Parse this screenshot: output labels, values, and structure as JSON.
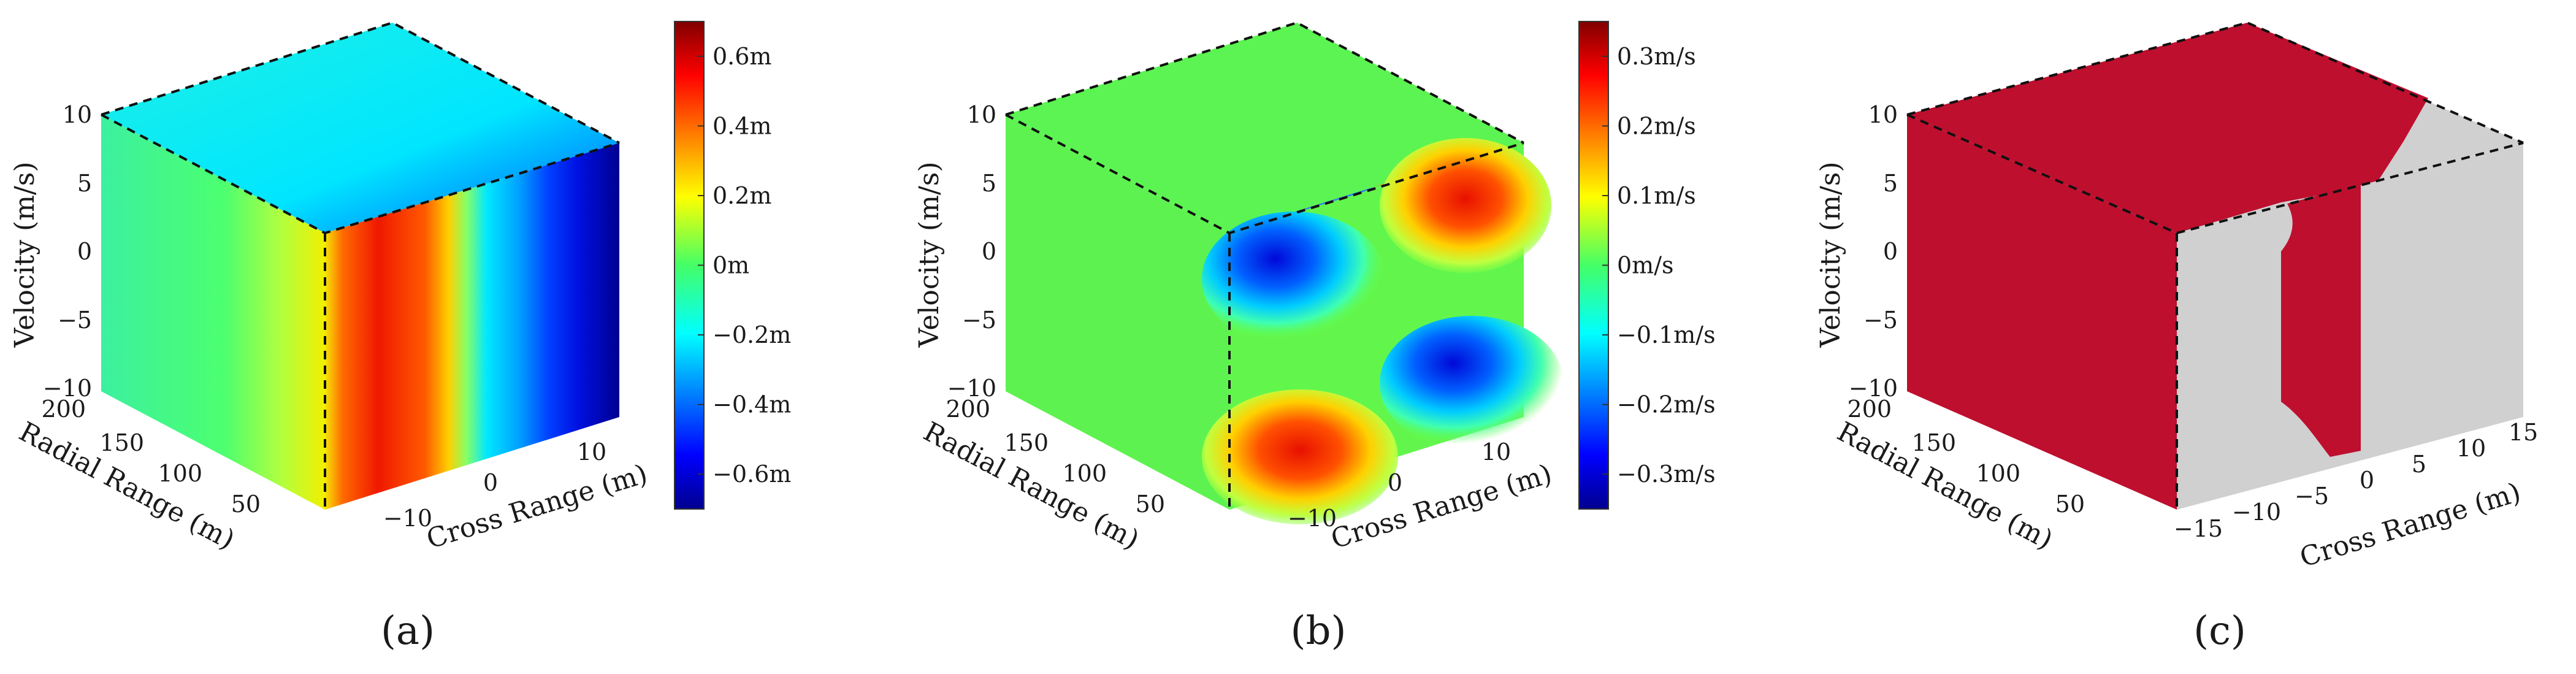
{
  "panels": [
    {
      "id": "a",
      "label": "(a)",
      "zlabel": "Velocity (m/s)",
      "ylabel": "Radial Range (m)",
      "xlabel": "Cross Range (m)",
      "zticks": [
        "10",
        "5",
        "0",
        "−5",
        "−10"
      ],
      "yticks": [
        "200",
        "150",
        "100",
        "50"
      ],
      "xticks": [
        "−10",
        "0",
        "10"
      ],
      "colorbar_ticks": [
        "0.6m",
        "0.4m",
        "0.2m",
        "0m",
        "−0.2m",
        "−0.4m",
        "−0.6m"
      ]
    },
    {
      "id": "b",
      "label": "(b)",
      "zlabel": "Velocity (m/s)",
      "ylabel": "Radial Range (m)",
      "xlabel": "Cross Range (m)",
      "zticks": [
        "10",
        "5",
        "0",
        "−5",
        "−10"
      ],
      "yticks": [
        "200",
        "150",
        "100",
        "50"
      ],
      "xticks": [
        "−10",
        "0",
        "10"
      ],
      "colorbar_ticks": [
        "0.3m/s",
        "0.2m/s",
        "0.1m/s",
        "0m/s",
        "−0.1m/s",
        "−0.2m/s",
        "−0.3m/s"
      ]
    },
    {
      "id": "c",
      "label": "(c)",
      "zlabel": "Velocity (m/s)",
      "ylabel": "Radial Range (m)",
      "xlabel": "Cross Range (m)",
      "zticks": [
        "10",
        "5",
        "0",
        "−5",
        "−10"
      ],
      "yticks": [
        "200",
        "150",
        "100",
        "50"
      ],
      "xticks": [
        "−15",
        "−10",
        "−5",
        "0",
        "5",
        "10",
        "15"
      ],
      "colorbar_ticks": []
    }
  ],
  "chart_data": [
    {
      "type": "heatmap",
      "panel": "a",
      "quantity": "m",
      "axes": {
        "x": {
          "label": "Cross Range (m)",
          "range": [
            -15,
            15
          ]
        },
        "y": {
          "label": "Radial Range (m)",
          "range": [
            0,
            200
          ]
        },
        "z": {
          "label": "Velocity (m/s)",
          "range": [
            -10,
            10
          ]
        }
      },
      "colorbar": {
        "range": [
          -0.7,
          0.7
        ],
        "ticks": [
          0.6,
          0.4,
          0.2,
          0,
          -0.2,
          -0.4,
          -0.6
        ],
        "unit": "m",
        "colormap": "jet"
      }
    },
    {
      "type": "heatmap",
      "panel": "b",
      "quantity": "m/s",
      "axes": {
        "x": {
          "label": "Cross Range (m)",
          "range": [
            -15,
            15
          ]
        },
        "y": {
          "label": "Radial Range (m)",
          "range": [
            0,
            200
          ]
        },
        "z": {
          "label": "Velocity (m/s)",
          "range": [
            -10,
            10
          ]
        }
      },
      "colorbar": {
        "range": [
          -0.35,
          0.35
        ],
        "ticks": [
          0.3,
          0.2,
          0.1,
          0,
          -0.1,
          -0.2,
          -0.3
        ],
        "unit": "m/s",
        "colormap": "jet"
      }
    },
    {
      "type": "heatmap",
      "panel": "c",
      "quantity": "binary",
      "axes": {
        "x": {
          "label": "Cross Range (m)",
          "range": [
            -15,
            15
          ]
        },
        "y": {
          "label": "Radial Range (m)",
          "range": [
            0,
            200
          ]
        },
        "z": {
          "label": "Velocity (m/s)",
          "range": [
            -10,
            10
          ]
        }
      },
      "colors": {
        "region": "#be0f2e",
        "background": "#d0d0d0"
      }
    }
  ]
}
